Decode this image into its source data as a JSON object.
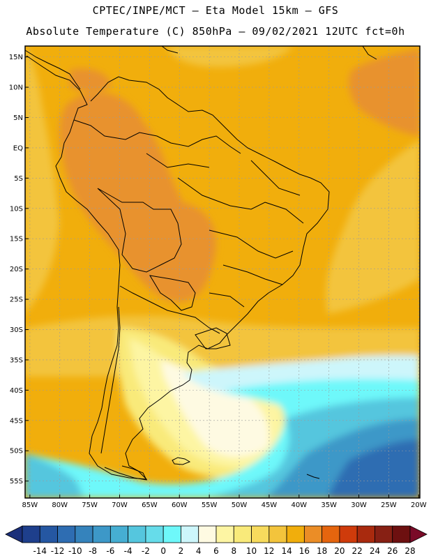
{
  "title_line1": "CPTEC/INPE/MCT –  Eta Model 15km – GFS",
  "title_line2": "Absolute Temperature (C) 850hPa – 09/02/2021 12UTC fct=0h",
  "lat_labels": [
    "15N",
    "10N",
    "5N",
    "EQ",
    "5S",
    "10S",
    "15S",
    "20S",
    "25S",
    "30S",
    "35S",
    "40S",
    "45S",
    "50S",
    "55S"
  ],
  "lat_values": [
    15,
    10,
    5,
    0,
    -5,
    -10,
    -15,
    -20,
    -25,
    -30,
    -35,
    -40,
    -45,
    -50,
    -55
  ],
  "lon_labels": [
    "85W",
    "80W",
    "75W",
    "70W",
    "65W",
    "60W",
    "55W",
    "50W",
    "45W",
    "40W",
    "35W",
    "30W",
    "25W",
    "20W"
  ],
  "lon_values": [
    -85,
    -80,
    -75,
    -70,
    -65,
    -60,
    -55,
    -50,
    -45,
    -40,
    -35,
    -30,
    -25,
    -20
  ],
  "map_extent": {
    "lon_min": -85.8,
    "lon_max": -19.8,
    "lat_min": -57.8,
    "lat_max": 16.8
  },
  "colorbar": {
    "labels": [
      "-14",
      "-12",
      "-10",
      "-8",
      "-6",
      "-4",
      "-2",
      "0",
      "2",
      "4",
      "6",
      "8",
      "10",
      "12",
      "14",
      "16",
      "18",
      "20",
      "22",
      "24",
      "26",
      "28"
    ],
    "colors": [
      "#1e3f8c",
      "#2557a2",
      "#2e6db2",
      "#3583bc",
      "#3d98c8",
      "#46aed2",
      "#55c6de",
      "#66dcea",
      "#6ef8fa",
      "#cdf6fb",
      "#fefae2",
      "#fdf5a3",
      "#f9ea7a",
      "#f7db5d",
      "#f3c43c",
      "#f1ae0c",
      "#eb8d26",
      "#e5650e",
      "#cf3b0b",
      "#a92a0e",
      "#872014",
      "#6d1010"
    ],
    "below_color": "#1a2f7a",
    "above_color": "#7a0a28"
  },
  "field_colors": {
    "hot": "#e8922d",
    "warm": "#f1ae0c",
    "mild": "#f3c43c",
    "cool": "#f9ea7a",
    "pale": "#fdf5a3",
    "cream": "#fefae2",
    "ice": "#cdf6fb",
    "cyan": "#6ef8fa",
    "sky": "#55c6de",
    "blue": "#3d98c8",
    "deep": "#2e6db2"
  }
}
